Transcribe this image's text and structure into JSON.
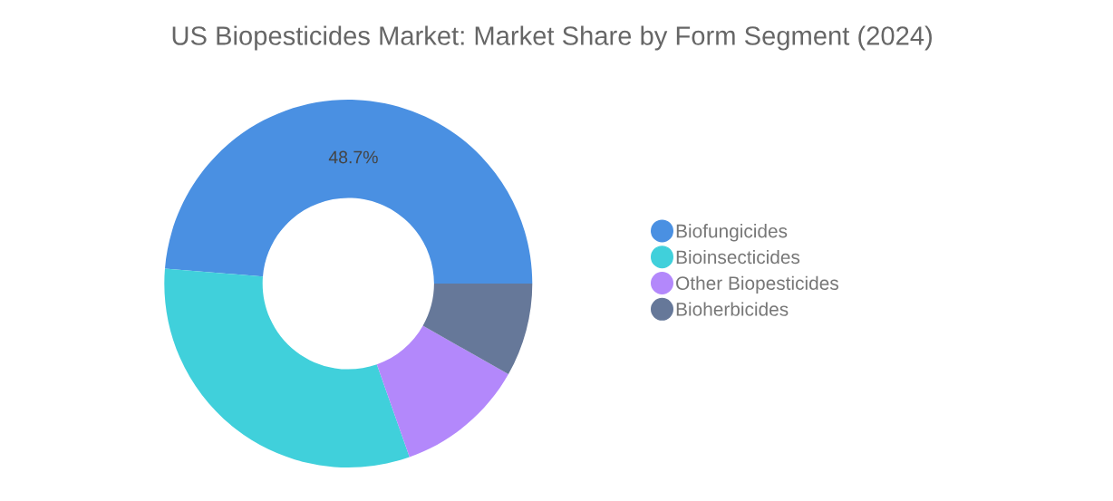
{
  "chart_data": {
    "type": "donut",
    "title": "US Biopesticides Market: Market Share by Form Segment (2024)",
    "categories": [
      "Biofungicides",
      "Bioinsecticides",
      "Other Biopesticides",
      "Bioherbicides"
    ],
    "values": [
      48.7,
      31.7,
      11.4,
      8.2
    ],
    "colors": [
      "#4a90e2",
      "#40d0db",
      "#b388fb",
      "#667899"
    ],
    "value_labels": [
      "48.7%",
      null,
      null,
      null
    ],
    "legend": "right"
  }
}
